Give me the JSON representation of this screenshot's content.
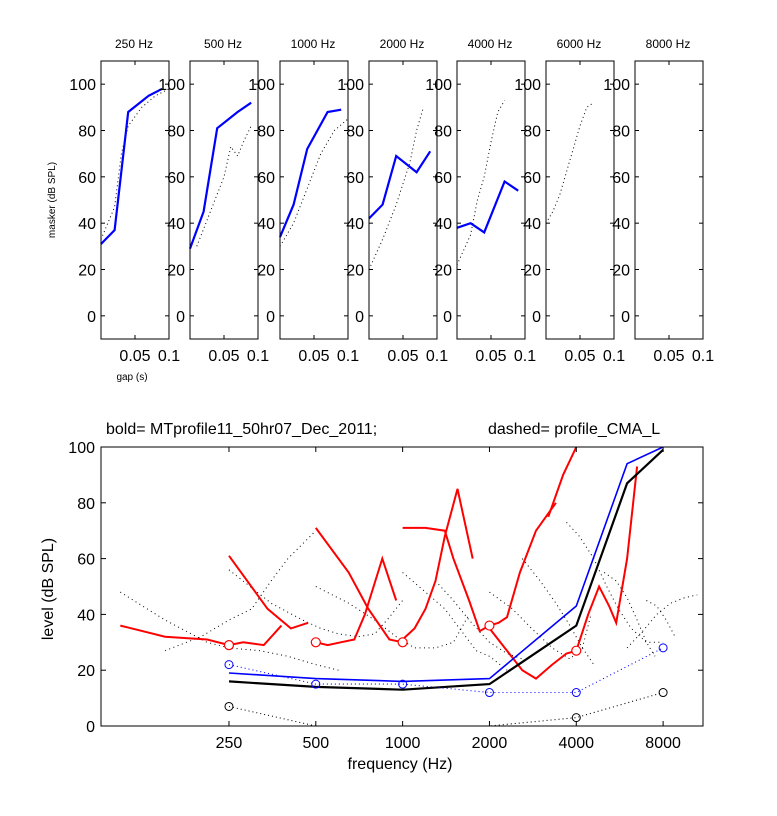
{
  "chart_data": [
    {
      "type": "line",
      "panel": "top",
      "ylabel": "masker (dB SPL)",
      "xlabel": "gap (s)",
      "ylim": [
        -10,
        110
      ],
      "xlim": [
        0,
        0.1
      ],
      "yticks": [
        0,
        20,
        40,
        60,
        80,
        100
      ],
      "xtick_labels": [
        "0.05",
        "0.1"
      ],
      "subplots": [
        {
          "title": "250 Hz",
          "bold": {
            "x": [
              0.0,
              0.02,
              0.04,
              0.07,
              0.09
            ],
            "y": [
              31,
              37,
              88,
              95,
              98
            ]
          },
          "dotted": {
            "x": [
              0.0,
              0.02,
              0.03,
              0.04,
              0.06,
              0.08,
              0.1
            ],
            "y": [
              33,
              47,
              70,
              82,
              90,
              95,
              98
            ]
          }
        },
        {
          "title": "500 Hz",
          "bold": {
            "x": [
              0.0,
              0.02,
              0.04,
              0.07,
              0.09
            ],
            "y": [
              29,
              45,
              81,
              88,
              92
            ]
          },
          "dotted": {
            "x": [
              0.01,
              0.03,
              0.05,
              0.06,
              0.07,
              0.08,
              0.09
            ],
            "y": [
              30,
              45,
              60,
              73,
              69,
              76,
              82
            ]
          }
        },
        {
          "title": "1000 Hz",
          "bold": {
            "x": [
              0.0,
              0.02,
              0.04,
              0.07,
              0.09
            ],
            "y": [
              34,
              48,
              72,
              88,
              89
            ]
          },
          "dotted": {
            "x": [
              0.0,
              0.02,
              0.04,
              0.06,
              0.08,
              0.1
            ],
            "y": [
              30,
              40,
              55,
              70,
              80,
              85
            ]
          }
        },
        {
          "title": "2000 Hz",
          "bold": {
            "x": [
              0.0,
              0.02,
              0.04,
              0.07,
              0.09
            ],
            "y": [
              42,
              48,
              69,
              62,
              71
            ]
          },
          "dotted": {
            "x": [
              0.0,
              0.02,
              0.04,
              0.06,
              0.07,
              0.08
            ],
            "y": [
              20,
              33,
              48,
              66,
              80,
              90
            ]
          }
        },
        {
          "title": "4000 Hz",
          "bold": {
            "x": [
              0.0,
              0.02,
              0.04,
              0.07,
              0.09
            ],
            "y": [
              38,
              40,
              36,
              58,
              54
            ]
          },
          "dotted": {
            "x": [
              0.0,
              0.02,
              0.03,
              0.04,
              0.05,
              0.06,
              0.07
            ],
            "y": [
              22,
              35,
              50,
              60,
              75,
              88,
              93
            ]
          }
        },
        {
          "title": "6000 Hz",
          "bold": null,
          "dotted": {
            "x": [
              0.0,
              0.01,
              0.02,
              0.03,
              0.04,
              0.05,
              0.06,
              0.07
            ],
            "y": [
              40,
              45,
              52,
              62,
              72,
              82,
              90,
              92
            ]
          }
        },
        {
          "title": "8000 Hz",
          "bold": null,
          "dotted": null
        }
      ]
    },
    {
      "type": "line",
      "panel": "bottom",
      "title_left": "bold= MTprofile11_50hr07_Dec_2011;",
      "title_right": "dashed=  profile_CMA_L",
      "xlabel": "frequency (Hz)",
      "ylabel": "level (dB SPL)",
      "xscale": "log",
      "xlim": [
        90,
        11000
      ],
      "ylim": [
        0,
        100
      ],
      "yticks": [
        0,
        20,
        40,
        60,
        80,
        100
      ],
      "xticks": [
        250,
        500,
        1000,
        2000,
        4000,
        8000
      ],
      "xtick_labels": [
        "250",
        "500",
        "1000",
        "2000",
        "4000",
        "8000"
      ],
      "series": [
        {
          "color": "#000000",
          "style": "solid",
          "width": 2.2,
          "x": [
            250,
            500,
            1000,
            2000,
            4000,
            6000,
            8000
          ],
          "y": [
            16,
            14,
            13,
            15,
            36,
            87,
            99
          ]
        },
        {
          "color": "#0000ff",
          "style": "solid",
          "width": 1.6,
          "x": [
            250,
            500,
            1000,
            2000,
            4000,
            6000,
            8000
          ],
          "y": [
            19,
            17,
            16,
            17,
            43,
            94,
            100
          ]
        },
        {
          "color": "#0000ff",
          "style": "dotted",
          "width": 1.1,
          "x": [
            250,
            500,
            1000,
            2000,
            4000,
            8000
          ],
          "y": [
            22,
            15,
            15,
            12,
            12,
            28
          ]
        },
        {
          "color": "#000000",
          "style": "dotted",
          "width": 1.1,
          "x": [
            250,
            500,
            1000,
            2000,
            4000,
            8000
          ],
          "y": [
            7,
            0,
            0,
            0,
            3,
            12
          ]
        }
      ],
      "red_tuning_curves": [
        {
          "x": [
            105,
            150,
            210,
            250,
            280,
            330,
            380
          ],
          "y": [
            36,
            32,
            31,
            29,
            30,
            29,
            36
          ]
        },
        {
          "x": [
            250,
            340,
            410,
            470
          ],
          "y": [
            61,
            42,
            35,
            37
          ]
        },
        {
          "x": [
            500,
            550,
            610,
            680,
            740,
            850,
            950
          ],
          "y": [
            30,
            29,
            30,
            31,
            40,
            60,
            45
          ]
        },
        {
          "x": [
            500,
            650,
            760,
            900,
            1000
          ],
          "y": [
            71,
            55,
            42,
            31,
            30
          ]
        },
        {
          "x": [
            1000,
            1100,
            1200,
            1300,
            1400,
            1550,
            1750
          ],
          "y": [
            31,
            35,
            42,
            52,
            68,
            85,
            60
          ]
        },
        {
          "x": [
            1000,
            1200,
            1400,
            1500,
            1700,
            1850,
            2000
          ],
          "y": [
            71,
            71,
            70,
            60,
            45,
            34,
            36
          ]
        },
        {
          "x": [
            2000,
            2150,
            2300,
            2550,
            2900,
            3400
          ],
          "y": [
            36,
            37,
            39,
            55,
            70,
            80
          ]
        },
        {
          "x": [
            2000,
            2300,
            2600,
            2900,
            3300,
            3700,
            4000
          ],
          "y": [
            35,
            27,
            20,
            17,
            22,
            26,
            27
          ]
        },
        {
          "x": [
            3200,
            3600,
            4000
          ],
          "y": [
            75,
            90,
            100
          ]
        },
        {
          "x": [
            4000,
            4400,
            4800,
            5200,
            5500,
            6000,
            6500
          ],
          "y": [
            27,
            40,
            50,
            43,
            37,
            60,
            93
          ]
        }
      ],
      "red_circles": {
        "x": [
          250,
          500,
          1000,
          2000,
          4000
        ],
        "y": [
          29,
          30,
          30,
          36,
          27
        ]
      },
      "black_dotted_curves": [
        {
          "x": [
            105,
            150,
            210,
            250,
            320,
            400,
            500,
            600
          ],
          "y": [
            48,
            38,
            30,
            28,
            27,
            25,
            22,
            20
          ]
        },
        {
          "x": [
            150,
            200,
            250,
            300,
            350,
            400,
            500
          ],
          "y": [
            27,
            32,
            38,
            42,
            52,
            60,
            70
          ]
        },
        {
          "x": [
            250,
            350,
            450,
            520,
            600,
            700,
            800,
            900,
            1000
          ],
          "y": [
            56,
            44,
            38,
            35,
            33,
            32,
            33,
            39,
            45
          ]
        },
        {
          "x": [
            500,
            650,
            800,
            950,
            1100,
            1300,
            1500,
            1700
          ],
          "y": [
            50,
            44,
            38,
            32,
            28,
            28,
            30,
            40
          ]
        },
        {
          "x": [
            1000,
            1200,
            1400,
            1600,
            1800,
            2000,
            2300
          ],
          "y": [
            55,
            48,
            42,
            34,
            27,
            25,
            20
          ]
        },
        {
          "x": [
            1300,
            1500,
            1700,
            2000,
            2300,
            2600
          ],
          "y": [
            52,
            45,
            38,
            30,
            26,
            24
          ]
        },
        {
          "x": [
            2000,
            2400,
            2800,
            3300,
            3800,
            4200,
            4500
          ],
          "y": [
            48,
            42,
            35,
            28,
            24,
            28,
            40
          ]
        },
        {
          "x": [
            2600,
            3000,
            3400,
            3800,
            4200,
            4600
          ],
          "y": [
            60,
            52,
            44,
            36,
            28,
            22
          ]
        },
        {
          "x": [
            3700,
            4100,
            4600,
            5100,
            5600,
            6200,
            7000,
            8000
          ],
          "y": [
            73,
            68,
            60,
            50,
            42,
            35,
            30,
            30
          ]
        },
        {
          "x": [
            5000,
            5500,
            6000,
            6500,
            7000,
            7500
          ],
          "y": [
            55,
            52,
            46,
            38,
            30,
            25
          ]
        },
        {
          "x": [
            6000,
            6800,
            7600,
            8500,
            9500,
            10500
          ],
          "y": [
            28,
            34,
            40,
            44,
            46,
            47
          ]
        },
        {
          "x": [
            7000,
            7600,
            8200,
            8800
          ],
          "y": [
            45,
            43,
            38,
            32
          ]
        }
      ]
    }
  ]
}
